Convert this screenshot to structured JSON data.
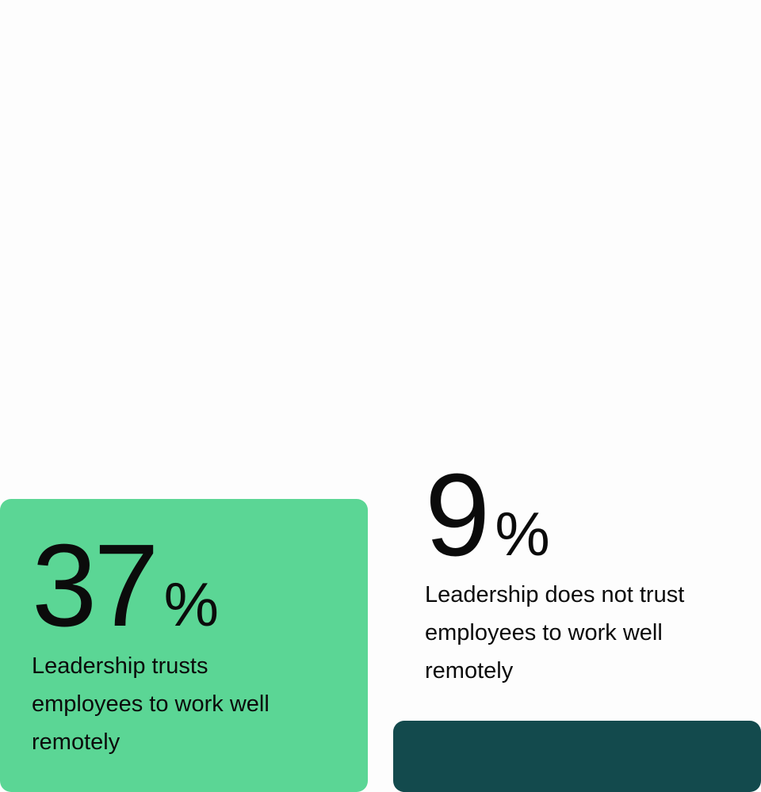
{
  "colors": {
    "green_card": "#5bd695",
    "dark_card": "#134a4d",
    "background": "#fdfdfd",
    "text": "#0b0b0b"
  },
  "stats": [
    {
      "value": "37",
      "unit": "%",
      "caption_lines": [
        "Leadership trusts",
        "employees to work well",
        "remotely"
      ]
    },
    {
      "value": "9",
      "unit": "%",
      "caption_lines": [
        "Leadership does not trust",
        "employees to work well",
        "remotely"
      ]
    }
  ]
}
